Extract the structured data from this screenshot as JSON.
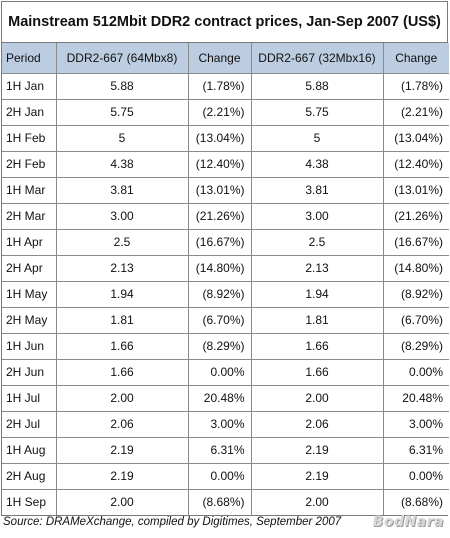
{
  "table": {
    "title": "Mainstream 512Mbit DDR2 contract prices, Jan-Sep 2007 (US$)",
    "headers": [
      "Period",
      "DDR2-667 (64Mbx8)",
      "Change",
      "DDR2-667 (32Mbx16)",
      "Change"
    ],
    "rows": [
      [
        "1H Jan",
        "5.88",
        "(1.78%)",
        "5.88",
        "(1.78%)"
      ],
      [
        "2H Jan",
        "5.75",
        "(2.21%)",
        "5.75",
        "(2.21%)"
      ],
      [
        "1H Feb",
        "5",
        "(13.04%)",
        "5",
        "(13.04%)"
      ],
      [
        "2H Feb",
        "4.38",
        "(12.40%)",
        "4.38",
        "(12.40%)"
      ],
      [
        "1H Mar",
        "3.81",
        "(13.01%)",
        "3.81",
        "(13.01%)"
      ],
      [
        "2H Mar",
        "3.00",
        "(21.26%)",
        "3.00",
        "(21.26%)"
      ],
      [
        "1H Apr",
        "2.5",
        "(16.67%)",
        "2.5",
        "(16.67%)"
      ],
      [
        "2H Apr",
        "2.13",
        "(14.80%)",
        "2.13",
        "(14.80%)"
      ],
      [
        "1H May",
        "1.94",
        "(8.92%)",
        "1.94",
        "(8.92%)"
      ],
      [
        "2H May",
        "1.81",
        "(6.70%)",
        "1.81",
        "(6.70%)"
      ],
      [
        "1H Jun",
        "1.66",
        "(8.29%)",
        "1.66",
        "(8.29%)"
      ],
      [
        "2H Jun",
        "1.66",
        "0.00%",
        "1.66",
        "0.00%"
      ],
      [
        "1H Jul",
        "2.00",
        "20.48%",
        "2.00",
        "20.48%"
      ],
      [
        "2H Jul",
        "2.06",
        "3.00%",
        "2.06",
        "3.00%"
      ],
      [
        "1H Aug",
        "2.19",
        "6.31%",
        "2.19",
        "6.31%"
      ],
      [
        "2H Aug",
        "2.19",
        "0.00%",
        "2.19",
        "0.00%"
      ],
      [
        "1H Sep",
        "2.00",
        "(8.68%)",
        "2.00",
        "(8.68%)"
      ]
    ]
  },
  "source": "Source: DRAMeXchange, compiled by Digitimes, September 2007",
  "watermark": "BodNara",
  "colors": {
    "header_bg": "#bccde2",
    "border": "#8a8a8a"
  }
}
